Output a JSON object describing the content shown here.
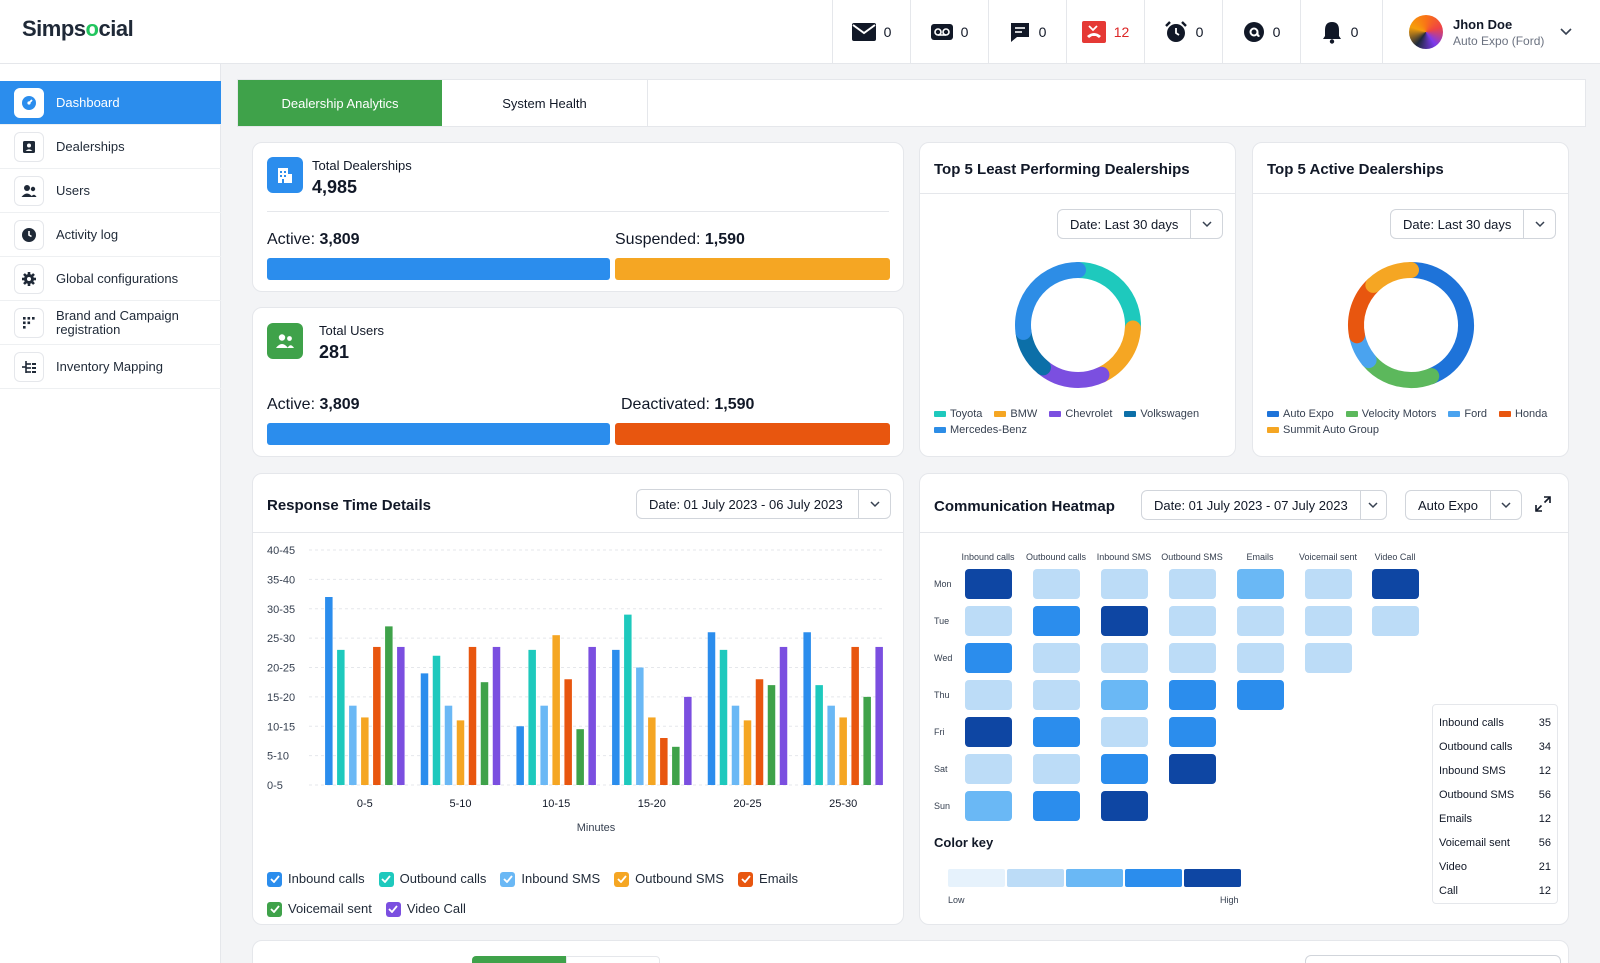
{
  "app": {
    "logo_prefix": "Simps",
    "logo_o": "o",
    "logo_suffix": "cial"
  },
  "notifications": [
    {
      "icon": "mail-icon",
      "count": "0"
    },
    {
      "icon": "voicemail-icon",
      "count": "0"
    },
    {
      "icon": "chat-icon",
      "count": "0"
    },
    {
      "icon": "missed-call-icon",
      "count": "12",
      "color": "#dc2626"
    },
    {
      "icon": "alarm-clock-icon",
      "count": "0"
    },
    {
      "icon": "at-sign-icon",
      "count": "0"
    },
    {
      "icon": "bell-icon",
      "count": "0"
    }
  ],
  "user": {
    "name": "Jhon Doe",
    "org": "Auto Expo (Ford)"
  },
  "sidebar": {
    "items": [
      {
        "label": "Dashboard",
        "icon": "dashboard-gauge-icon",
        "active": true
      },
      {
        "label": "Dealerships",
        "icon": "contact-card-icon"
      },
      {
        "label": "Users",
        "icon": "users-icon"
      },
      {
        "label": "Activity log",
        "icon": "clock-icon"
      },
      {
        "label": "Global configurations",
        "icon": "gear-icon"
      },
      {
        "label": "Brand and Campaign registration",
        "icon": "dots-grid-icon"
      },
      {
        "label": "Inventory Mapping",
        "icon": "hierarchy-icon"
      }
    ]
  },
  "tabs": {
    "analytics": "Dealership Analytics",
    "health": "System Health"
  },
  "dealerships": {
    "label": "Total Dealerships",
    "value": "4,985",
    "active_label": "Active:",
    "active_value": "3,809",
    "suspended_label": "Suspended:",
    "suspended_value": "1,590",
    "active_fraction": 0.555
  },
  "users": {
    "label": "Total Users",
    "value": "281",
    "active_label": "Active:",
    "active_value": "3,809",
    "deactivated_label": "Deactivated:",
    "deactivated_value": "1,590",
    "active_fraction": 0.555
  },
  "least_performing": {
    "title": "Top 5 Least Performing Dealerships",
    "date": "Date: Last 30 days",
    "legend": [
      "Toyota",
      "BMW",
      "Chevrolet",
      "Volkswagen",
      "Mercedes-Benz"
    ],
    "colors": [
      "#1ec9bd",
      "#f5a623",
      "#7b4fe0",
      "#0c6fa8",
      "#2d8de6"
    ],
    "values": [
      26,
      17,
      18,
      12,
      27
    ]
  },
  "active_dealerships": {
    "title": "Top 5 Active Dealerships",
    "date": "Date: Last 30 days",
    "legend": [
      "Auto Expo",
      "Velocity Motors",
      "Ford",
      "Honda",
      "Summit Auto Group"
    ],
    "colors": [
      "#1e73d9",
      "#5cb85c",
      "#4aa3ef",
      "#e8560f",
      "#f5a623"
    ],
    "values": [
      44,
      20,
      8,
      16,
      12
    ]
  },
  "response_time": {
    "title": "Response Time Details",
    "date": "Date: 01 July 2023 - 06 July 2023",
    "xlabel": "Minutes",
    "legend": [
      "Inbound calls",
      "Outbound calls",
      "Inbound SMS",
      "Outbound SMS",
      "Emails",
      "Voicemail sent",
      "Video Call"
    ],
    "legend_colors": [
      "#2b8ded",
      "#1ec9bd",
      "#6ab8f5",
      "#f5a623",
      "#e8560f",
      "#3fa24a",
      "#7b4fe0"
    ]
  },
  "chart_data": {
    "type": "bar",
    "categories": [
      "0-5",
      "5-10",
      "10-15",
      "15-20",
      "20-25",
      "25-30"
    ],
    "xlabel": "Minutes",
    "ylabel": "",
    "y_tick_labels": [
      "0-5",
      "5-10",
      "10-15",
      "15-20",
      "20-25",
      "25-30",
      "30-35",
      "35-40",
      "40-45"
    ],
    "ylim": [
      0,
      40
    ],
    "series": [
      {
        "name": "Inbound calls",
        "color": "#2b8ded",
        "values": [
          32,
          19,
          10,
          23,
          26,
          26
        ]
      },
      {
        "name": "Outbound calls",
        "color": "#1ec9bd",
        "values": [
          23,
          22,
          23,
          29,
          23,
          17
        ]
      },
      {
        "name": "Inbound SMS",
        "color": "#6ab8f5",
        "values": [
          13.5,
          13.5,
          13.5,
          20,
          13.5,
          13.5
        ]
      },
      {
        "name": "Outbound SMS",
        "color": "#f5a623",
        "values": [
          11.5,
          11,
          25.5,
          11.5,
          11,
          11.5
        ]
      },
      {
        "name": "Emails",
        "color": "#e8560f",
        "values": [
          23.5,
          23.5,
          18,
          8,
          18,
          23.5
        ]
      },
      {
        "name": "Voicemail sent",
        "color": "#3fa24a",
        "values": [
          27,
          17.5,
          9.5,
          6.5,
          17,
          15
        ]
      },
      {
        "name": "Video Call",
        "color": "#7b4fe0",
        "values": [
          23.5,
          23.5,
          23.5,
          15,
          23.5,
          23.5
        ]
      }
    ]
  },
  "heatmap": {
    "title": "Communication Heatmap",
    "date": "Date: 01 July 2023 - 07 July 2023",
    "filter": "Auto Expo",
    "columns": [
      "Inbound calls",
      "Outbound calls",
      "Inbound SMS",
      "Outbound SMS",
      "Emails",
      "Voicemail sent",
      "Video Call"
    ],
    "days": [
      "Mon",
      "Tue",
      "Wed",
      "Thu",
      "Fri",
      "Sat",
      "Sun"
    ],
    "levels": [
      [
        5,
        2,
        2,
        2,
        3,
        2,
        5
      ],
      [
        2,
        4,
        5,
        2,
        2,
        2,
        2
      ],
      [
        4,
        2,
        2,
        2,
        2,
        2,
        0
      ],
      [
        2,
        2,
        3,
        4,
        4,
        0,
        0
      ],
      [
        5,
        4,
        2,
        4,
        0,
        0,
        0
      ],
      [
        2,
        2,
        4,
        5,
        0,
        0,
        0
      ],
      [
        3,
        4,
        5,
        0,
        0,
        0,
        0
      ]
    ],
    "palette": [
      "#e6f2fc",
      "#bcdcf7",
      "#6ab8f5",
      "#2b8ded",
      "#0e46a3"
    ],
    "color_key_label": "Color key",
    "low": "Low",
    "high": "High",
    "key": [
      {
        "label": "Inbound calls",
        "value": "35"
      },
      {
        "label": "Outbound calls",
        "value": "34"
      },
      {
        "label": "Inbound SMS",
        "value": "12"
      },
      {
        "label": "Outbound SMS",
        "value": "56"
      },
      {
        "label": "Emails",
        "value": "12"
      },
      {
        "label": "Voicemail sent",
        "value": "56"
      },
      {
        "label": "Video",
        "value": "21"
      },
      {
        "label": "Call",
        "value": "12"
      }
    ]
  }
}
